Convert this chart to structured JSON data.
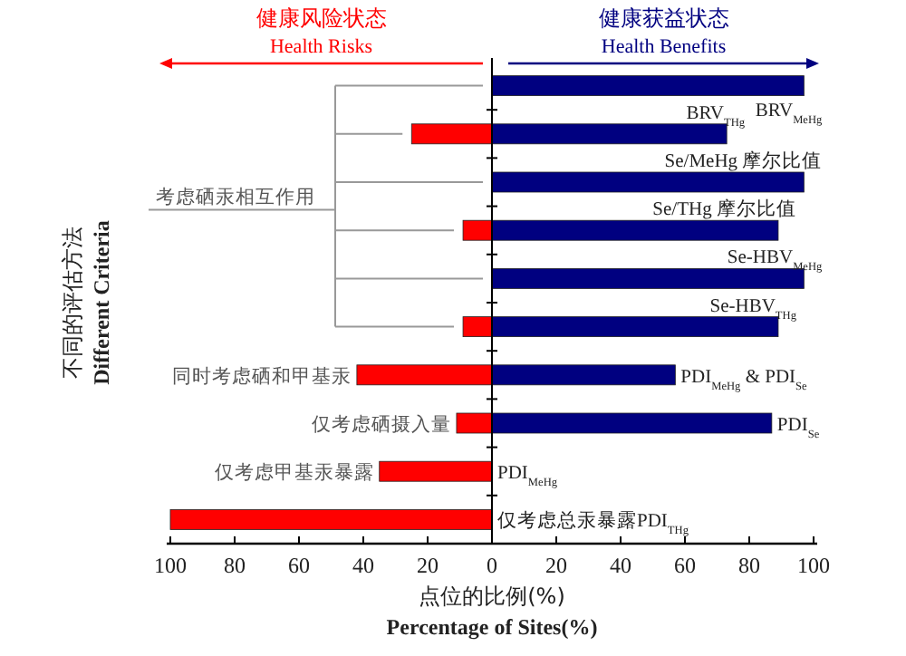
{
  "chart_data": {
    "type": "bar",
    "orientation": "horizontal",
    "xlabel": "点位的比例(%) Percentage of Sites(%)",
    "ylabel": "不同的评估方法 Different Criteria",
    "categories": [
      "BRV$_{MeHg}$",
      "BRV$_{THg}$",
      "Se/MeHg 摩尔比值",
      "Se/THg 摩尔比值",
      "Se-HBV$_{MeHg}$",
      "Se-HBV$_{THg}$",
      "PDI$_{MeHg}$ & PDI$_{Se}$",
      "PDI$_{Se}$",
      "PDI$_{MeHg}$",
      "仅考虑总汞暴露PDI$_{THg}$"
    ],
    "series": [
      {
        "name": "健康风险状态 Health Risks",
        "color": "#ff0000",
        "values": [
          0,
          -25,
          0,
          -9,
          0,
          -9,
          -42,
          -11,
          -35,
          -100
        ]
      },
      {
        "name": "健康获益状态 Health Benefits",
        "color": "#000080",
        "values": [
          97,
          73,
          97,
          89,
          97,
          89,
          57,
          87,
          0,
          0
        ]
      }
    ],
    "xlim": [
      -100,
      100
    ],
    "xticks": [
      {
        "value": -100,
        "label": "100"
      },
      {
        "value": -80,
        "label": "80"
      },
      {
        "value": -60,
        "label": "60"
      },
      {
        "value": -40,
        "label": "40"
      },
      {
        "value": -20,
        "label": "20"
      },
      0,
      20,
      40,
      60,
      80,
      100
    ],
    "legend": "top",
    "stacked": true,
    "annotations": [
      "考虑硒汞相互作用",
      "同时考虑硒和甲基汞",
      "仅考虑硒摄入量",
      "仅考虑甲基汞暴露"
    ]
  }
}
